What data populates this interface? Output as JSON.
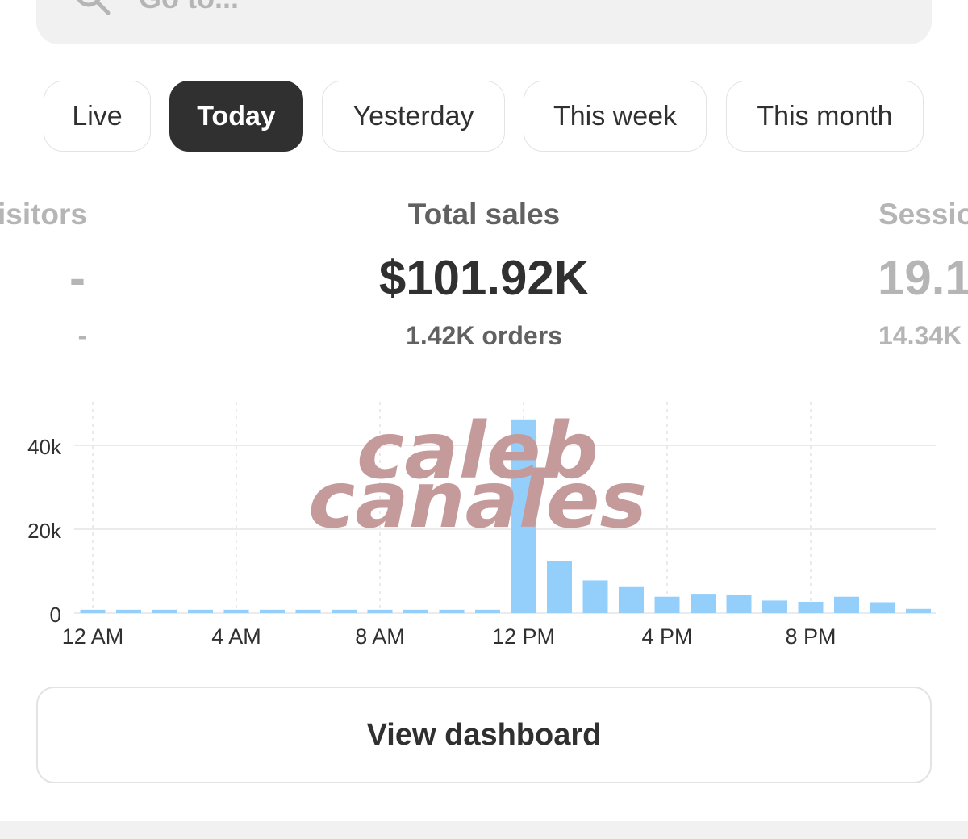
{
  "search": {
    "placeholder": "Go to..."
  },
  "tabs": [
    {
      "label": "Live",
      "active": false
    },
    {
      "label": "Today",
      "active": true
    },
    {
      "label": "Yesterday",
      "active": false
    },
    {
      "label": "This week",
      "active": false
    },
    {
      "label": "This month",
      "active": false
    }
  ],
  "metrics": {
    "visitors": {
      "label": "Visitors",
      "value": "-",
      "sub": "-"
    },
    "total_sales": {
      "label": "Total sales",
      "value": "$101.92K",
      "sub": "1.42K orders"
    },
    "sessions": {
      "label": "Sessions",
      "value": "19.1",
      "sub": "14.34K"
    }
  },
  "chart_data": {
    "type": "bar",
    "x": [
      "12 AM",
      "1 AM",
      "2 AM",
      "3 AM",
      "4 AM",
      "5 AM",
      "6 AM",
      "7 AM",
      "8 AM",
      "9 AM",
      "10 AM",
      "11 AM",
      "12 PM",
      "1 PM",
      "2 PM",
      "3 PM",
      "4 PM",
      "5 PM",
      "6 PM",
      "7 PM",
      "8 PM",
      "9 PM",
      "10 PM",
      "11 PM"
    ],
    "values": [
      800,
      800,
      800,
      800,
      800,
      800,
      800,
      800,
      800,
      800,
      800,
      800,
      46000,
      12500,
      7800,
      6200,
      3900,
      4600,
      4300,
      3000,
      2700,
      3900,
      2600,
      1000
    ],
    "y_ticks": [
      "40k",
      "20k",
      "0"
    ],
    "y_tick_values": [
      40000,
      20000,
      0
    ],
    "x_ticks": [
      "12 AM",
      "4 AM",
      "8 AM",
      "12 PM",
      "4 PM",
      "8 PM"
    ],
    "ylim": [
      0,
      50000
    ],
    "bar_color": "#94cffc",
    "grid": true
  },
  "watermark": {
    "line1": "caleb",
    "line2": "canales",
    "color": "#c49a9a"
  },
  "dashboard_button": {
    "label": "View dashboard"
  },
  "colors": {
    "text": "#303030",
    "muted": "#b5b5b5",
    "active_tab": "#303030",
    "border": "#e3e3e3"
  }
}
